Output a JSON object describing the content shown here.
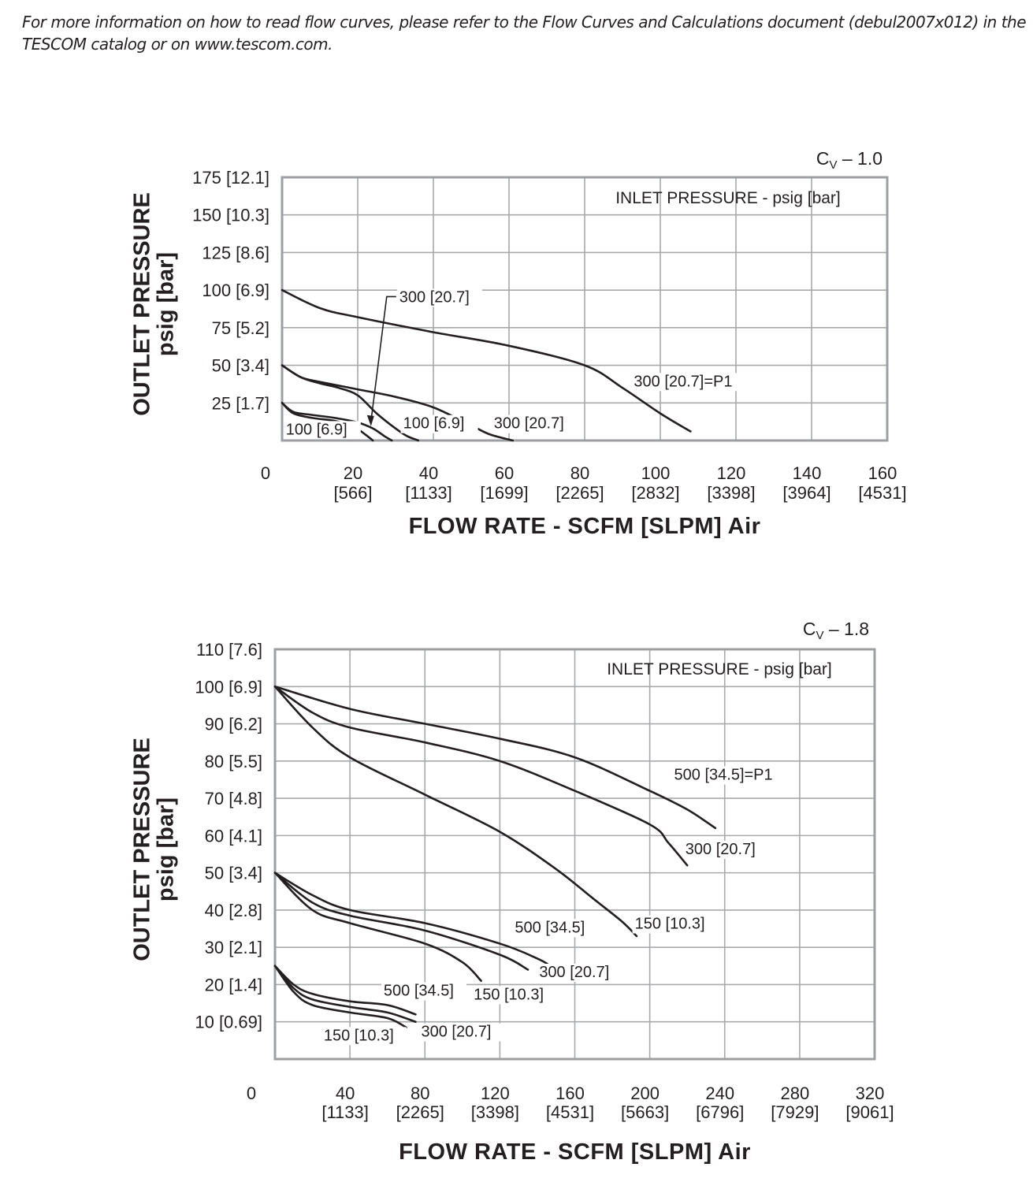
{
  "note": {
    "line1": "For more information on how to read flow curves, please refer to the Flow Curves and Calculations document (debul2007x012) in the",
    "line2": "TESCOM catalog or on www.tescom.com."
  },
  "chart_data": [
    {
      "type": "line",
      "cv_prefix": "C",
      "cv_sub": "V",
      "cv_value": " – 1.0",
      "legend_title": "INLET PRESSURE - psig [bar]",
      "ylabel_line1": "OUTLET PRESSURE",
      "ylabel_line2": "psig [bar]",
      "xlabel": "FLOW RATE - SCFM [SLPM] Air",
      "xlim": [
        0,
        160
      ],
      "ylim": [
        0,
        175
      ],
      "origin_label": "0",
      "x_ticks": [
        {
          "value": 20,
          "scfm": "20",
          "slpm": "[566]"
        },
        {
          "value": 40,
          "scfm": "40",
          "slpm": "[1133]"
        },
        {
          "value": 60,
          "scfm": "60",
          "slpm": "[1699]"
        },
        {
          "value": 80,
          "scfm": "80",
          "slpm": "[2265]"
        },
        {
          "value": 100,
          "scfm": "100",
          "slpm": "[2832]"
        },
        {
          "value": 120,
          "scfm": "120",
          "slpm": "[3398]"
        },
        {
          "value": 140,
          "scfm": "140",
          "slpm": "[3964]"
        },
        {
          "value": 160,
          "scfm": "160",
          "slpm": "[4531]"
        }
      ],
      "y_ticks": [
        {
          "value": 25,
          "label": "25 [1.7]"
        },
        {
          "value": 50,
          "label": "50 [3.4]"
        },
        {
          "value": 75,
          "label": "75 [5.2]"
        },
        {
          "value": 100,
          "label": "100 [6.9]"
        },
        {
          "value": 125,
          "label": "125 [8.6]"
        },
        {
          "value": 150,
          "label": "150 [10.3]"
        },
        {
          "value": 175,
          "label": "175 [12.1]"
        }
      ],
      "series": [
        {
          "name": "300 [20.7]=P1",
          "setpoint": 100,
          "x": [
            0,
            10,
            20,
            40,
            60,
            80,
            90,
            100,
            108
          ],
          "y": [
            100,
            88,
            82,
            72,
            63,
            50,
            35,
            18,
            6
          ]
        },
        {
          "name": "300 [20.7]",
          "setpoint": 50,
          "x": [
            0,
            5,
            10,
            20,
            30,
            40,
            50,
            55,
            61
          ],
          "y": [
            50,
            42,
            39,
            34,
            29,
            22,
            10,
            4,
            0
          ]
        },
        {
          "name": "100 [6.9]",
          "setpoint": 50,
          "x": [
            0,
            5,
            10,
            15,
            20,
            25,
            30,
            33,
            36
          ],
          "y": [
            50,
            42,
            38,
            35,
            30,
            18,
            8,
            3,
            0
          ]
        },
        {
          "name": "300 [20.7]",
          "setpoint": 25,
          "x": [
            0,
            3,
            8,
            14,
            20,
            24,
            27,
            29
          ],
          "y": [
            25,
            19,
            17,
            15,
            12,
            8,
            3,
            0
          ]
        },
        {
          "name": "100 [6.9]",
          "setpoint": 25,
          "x": [
            0,
            3,
            8,
            14,
            19,
            22,
            24
          ],
          "y": [
            25,
            18,
            15,
            13,
            9,
            4,
            0
          ]
        }
      ],
      "annotations": [
        {
          "text": "300 [20.7]=P1",
          "x": 93,
          "y": 36
        },
        {
          "text": "300 [20.7]",
          "x": 56,
          "y": 8
        },
        {
          "text": "100 [6.9]",
          "x": 32,
          "y": 8
        },
        {
          "text": "100 [6.9]",
          "x": 1,
          "y": 4
        },
        {
          "text": "300 [20.7]",
          "x": 31,
          "y": 92
        }
      ]
    },
    {
      "type": "line",
      "cv_prefix": "C",
      "cv_sub": "V",
      "cv_value": " – 1.8",
      "legend_title": "INLET PRESSURE - psig [bar]",
      "ylabel_line1": "OUTLET PRESSURE",
      "ylabel_line2": "psig [bar]",
      "xlabel": "FLOW RATE - SCFM [SLPM] Air",
      "xlim": [
        0,
        320
      ],
      "ylim": [
        0,
        110
      ],
      "origin_label": "0",
      "x_ticks": [
        {
          "value": 40,
          "scfm": "40",
          "slpm": "[1133]"
        },
        {
          "value": 80,
          "scfm": "80",
          "slpm": "[2265]"
        },
        {
          "value": 120,
          "scfm": "120",
          "slpm": "[3398]"
        },
        {
          "value": 160,
          "scfm": "160",
          "slpm": "[4531]"
        },
        {
          "value": 200,
          "scfm": "200",
          "slpm": "[5663]"
        },
        {
          "value": 240,
          "scfm": "240",
          "slpm": "[6796]"
        },
        {
          "value": 280,
          "scfm": "280",
          "slpm": "[7929]"
        },
        {
          "value": 320,
          "scfm": "320",
          "slpm": "[9061]"
        }
      ],
      "y_ticks": [
        {
          "value": 10,
          "label": "10 [0.69]"
        },
        {
          "value": 20,
          "label": "20 [1.4]"
        },
        {
          "value": 30,
          "label": "30 [2.1]"
        },
        {
          "value": 40,
          "label": "40 [2.8]"
        },
        {
          "value": 50,
          "label": "50 [3.4]"
        },
        {
          "value": 60,
          "label": "60 [4.1]"
        },
        {
          "value": 70,
          "label": "70 [4.8]"
        },
        {
          "value": 80,
          "label": "80 [5.5]"
        },
        {
          "value": 90,
          "label": "90 [6.2]"
        },
        {
          "value": 100,
          "label": "100 [6.9]"
        },
        {
          "value": 110,
          "label": "110 [7.6]"
        }
      ],
      "series": [
        {
          "name": "500 [34.5]=P1",
          "setpoint": 100,
          "x": [
            0,
            40,
            80,
            120,
            160,
            200,
            220,
            235
          ],
          "y": [
            100,
            94,
            90,
            86,
            81,
            72,
            67,
            62
          ]
        },
        {
          "name": "300 [20.7]",
          "setpoint": 100,
          "x": [
            0,
            20,
            40,
            80,
            120,
            160,
            200,
            210,
            220
          ],
          "y": [
            100,
            93,
            89,
            85,
            80,
            72,
            63,
            58,
            52
          ]
        },
        {
          "name": "150 [10.3]",
          "setpoint": 100,
          "x": [
            0,
            20,
            40,
            80,
            120,
            150,
            170,
            185,
            193
          ],
          "y": [
            100,
            89,
            81,
            71,
            61,
            51,
            43,
            37,
            33
          ]
        },
        {
          "name": "500 [34.5]",
          "setpoint": 50,
          "x": [
            0,
            20,
            40,
            80,
            120,
            140,
            147
          ],
          "y": [
            50,
            44,
            40,
            36.5,
            31,
            27,
            25
          ]
        },
        {
          "name": "300 [20.7]",
          "setpoint": 50,
          "x": [
            0,
            20,
            40,
            80,
            120,
            135
          ],
          "y": [
            50,
            42,
            38.5,
            34.5,
            28,
            24
          ]
        },
        {
          "name": "150 [10.3]",
          "setpoint": 50,
          "x": [
            0,
            20,
            40,
            80,
            100,
            110
          ],
          "y": [
            50,
            40,
            36.5,
            31,
            26,
            21
          ]
        },
        {
          "name": "500 [34.5]",
          "setpoint": 25,
          "x": [
            0,
            10,
            20,
            40,
            60,
            75
          ],
          "y": [
            25,
            20,
            17.5,
            15.5,
            14.5,
            12
          ]
        },
        {
          "name": "300 [20.7]",
          "setpoint": 25,
          "x": [
            0,
            10,
            20,
            40,
            60,
            75
          ],
          "y": [
            25,
            19,
            16,
            14,
            12.5,
            10
          ]
        },
        {
          "name": "150 [10.3]",
          "setpoint": 25,
          "x": [
            0,
            10,
            20,
            40,
            60,
            70
          ],
          "y": [
            25,
            18,
            14.5,
            12.5,
            11,
            8.5
          ]
        }
      ],
      "annotations": [
        {
          "text": "500 [34.5]=P1",
          "x": 213,
          "y": 75
        },
        {
          "text": "300 [20.7]",
          "x": 219,
          "y": 55
        },
        {
          "text": "150 [10.3]",
          "x": 192,
          "y": 35
        },
        {
          "text": "500 [34.5]",
          "x": 128,
          "y": 34
        },
        {
          "text": "300 [20.7]",
          "x": 141,
          "y": 22
        },
        {
          "text": "150 [10.3]",
          "x": 106,
          "y": 16
        },
        {
          "text": "500 [34.5]",
          "x": 58,
          "y": 17
        },
        {
          "text": "300 [20.7]",
          "x": 78,
          "y": 6
        },
        {
          "text": "150 [10.3]",
          "x": 26,
          "y": 5
        }
      ]
    }
  ]
}
